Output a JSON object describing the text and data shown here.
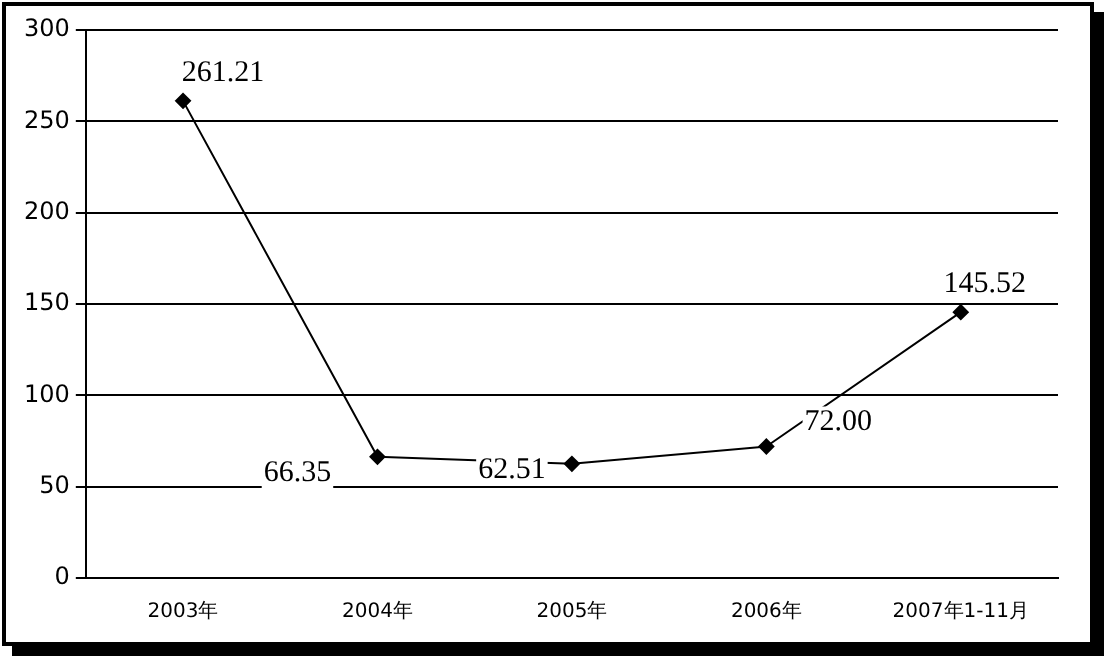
{
  "chart_data": {
    "type": "line",
    "categories": [
      "2003年",
      "2004年",
      "2005年",
      "2006年",
      "2007年1-11月"
    ],
    "series": [
      {
        "color": "#000000",
        "values": [
          261.21,
          66.35,
          62.51,
          72.0,
          145.52
        ]
      }
    ],
    "value_labels": [
      "261.21",
      "66.35",
      "62.51",
      "72.00",
      "145.52"
    ],
    "ylim": [
      0,
      300
    ],
    "yticks": [
      0,
      50,
      100,
      150,
      200,
      250,
      300
    ],
    "grid": "y",
    "marker": "diamond",
    "line_style": "solid",
    "legend": false
  }
}
